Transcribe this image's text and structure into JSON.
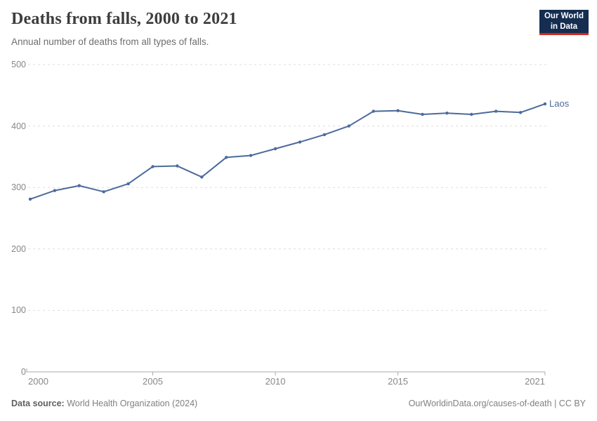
{
  "header": {
    "title": "Deaths from falls, 2000 to 2021",
    "subtitle": "Annual number of deaths from all types of falls.",
    "logo": {
      "text": "Our World\nin Data",
      "bg_color": "#142d50",
      "accent_color": "#d7261f"
    }
  },
  "chart_data": {
    "type": "line",
    "title": "Deaths from falls, 2000 to 2021",
    "xlabel": "",
    "ylabel": "",
    "xlim": [
      2000,
      2021
    ],
    "ylim": [
      0,
      500
    ],
    "x_ticks": [
      2000,
      2005,
      2010,
      2015,
      2021
    ],
    "y_ticks": [
      0,
      100,
      200,
      300,
      400,
      500
    ],
    "grid": "horizontal-dashed",
    "legend_position": "end-of-line-label",
    "x": [
      2000,
      2001,
      2002,
      2003,
      2004,
      2005,
      2006,
      2007,
      2008,
      2009,
      2010,
      2011,
      2012,
      2013,
      2014,
      2015,
      2016,
      2017,
      2018,
      2019,
      2020,
      2021
    ],
    "series": [
      {
        "name": "Laos",
        "color": "#4c6a9c",
        "values": [
          281,
          295,
          303,
          293,
          306,
          334,
          335,
          317,
          349,
          352,
          363,
          374,
          386,
          400,
          424,
          425,
          419,
          421,
          419,
          424,
          422,
          436
        ]
      }
    ],
    "colors": {
      "grid": "#dedede",
      "axis": "#a8a8a8",
      "tick_text": "#878787"
    }
  },
  "footer": {
    "source_label": "Data source:",
    "source_value": "World Health Organization (2024)",
    "right_text": "OurWorldinData.org/causes-of-death | CC BY"
  }
}
